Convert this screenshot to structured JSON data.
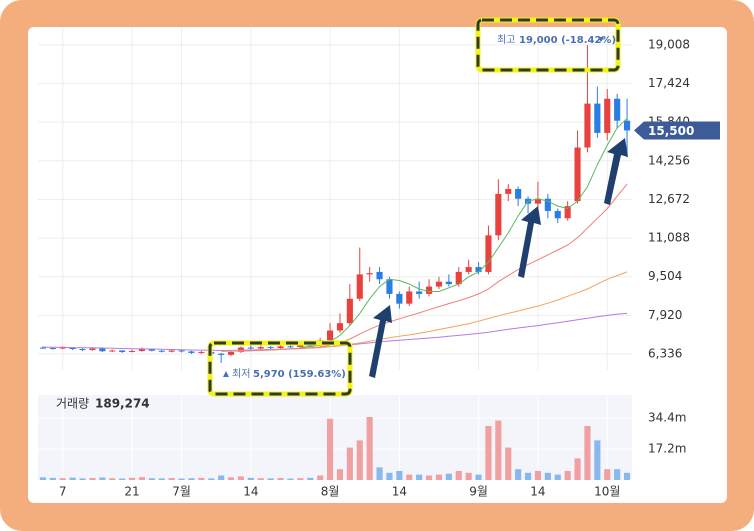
{
  "chart_data": [
    {
      "type": "candlestick",
      "xlim": [
        -0.5,
        59.5
      ],
      "ylim": [
        5680,
        19700
      ],
      "yticks": [
        {
          "value": 6336,
          "label": "6,336"
        },
        {
          "value": 7920,
          "label": "7,920"
        },
        {
          "value": 9504,
          "label": "9,504"
        },
        {
          "value": 11088,
          "label": "11,088"
        },
        {
          "value": 12672,
          "label": "12,672"
        },
        {
          "value": 14256,
          "label": "14,256"
        },
        {
          "value": 15840,
          "label": "15,840"
        },
        {
          "value": 17424,
          "label": "17,424"
        },
        {
          "value": 19008,
          "label": "19,008"
        }
      ],
      "grid": true,
      "up_color": "#e8423f",
      "down_color": "#2a7de1",
      "open": [
        6600,
        6580,
        6560,
        6600,
        6540,
        6500,
        6560,
        6450,
        6480,
        6420,
        6460,
        6540,
        6470,
        6430,
        6480,
        6440,
        6380,
        6420,
        6350,
        6300,
        6420,
        6600,
        6560,
        6620,
        6580,
        6650,
        6620,
        6700,
        6680,
        6900,
        7300,
        7600,
        8600,
        9600,
        9700,
        9400,
        8800,
        8400,
        8900,
        8800,
        9100,
        9300,
        9200,
        9700,
        9900,
        9700,
        11200,
        12900,
        13100,
        12700,
        12500,
        12700,
        12200,
        11900,
        12600,
        14800,
        16600,
        15400,
        16800,
        15900
      ],
      "high": [
        6650,
        6620,
        6640,
        6620,
        6580,
        6600,
        6590,
        6520,
        6500,
        6520,
        6600,
        6560,
        6500,
        6520,
        6510,
        6470,
        6460,
        6440,
        6380,
        6460,
        6650,
        6700,
        6680,
        6660,
        6700,
        6720,
        6780,
        6760,
        7000,
        7600,
        8000,
        9200,
        10700,
        9900,
        9900,
        9500,
        8900,
        9100,
        9300,
        9400,
        9500,
        9600,
        9900,
        10200,
        10100,
        11600,
        13500,
        13300,
        13200,
        12800,
        13400,
        12900,
        12300,
        12600,
        15500,
        19000,
        17300,
        17200,
        17000,
        16800
      ],
      "low": [
        6550,
        6520,
        6530,
        6500,
        6460,
        6470,
        6420,
        6420,
        6380,
        6400,
        6430,
        6440,
        6400,
        6400,
        6400,
        6340,
        6330,
        6300,
        5970,
        6250,
        6380,
        6520,
        6520,
        6540,
        6550,
        6580,
        6600,
        6640,
        6650,
        6880,
        7200,
        7500,
        8500,
        9300,
        9200,
        8600,
        8200,
        8300,
        8600,
        8700,
        9000,
        9100,
        9100,
        9600,
        9600,
        9600,
        11000,
        12600,
        12400,
        12100,
        12300,
        11900,
        11700,
        11800,
        12500,
        14600,
        15200,
        15100,
        15600,
        14400
      ],
      "close": [
        6580,
        6560,
        6600,
        6540,
        6500,
        6560,
        6450,
        6480,
        6420,
        6460,
        6540,
        6470,
        6430,
        6480,
        6440,
        6380,
        6420,
        6350,
        6300,
        6420,
        6600,
        6560,
        6620,
        6580,
        6650,
        6620,
        6700,
        6680,
        6900,
        7300,
        7600,
        8600,
        9600,
        9650,
        9400,
        8800,
        8400,
        8900,
        8800,
        9100,
        9300,
        9200,
        9700,
        9900,
        9700,
        11200,
        12900,
        13100,
        12700,
        12500,
        12700,
        12200,
        11900,
        12400,
        14800,
        16600,
        15400,
        16800,
        15900,
        15500
      ],
      "series": [
        {
          "color": "#b57be6",
          "values": [
            6620,
            6615,
            6610,
            6600,
            6595,
            6590,
            6580,
            6570,
            6560,
            6550,
            6545,
            6540,
            6530,
            6520,
            6510,
            6500,
            6495,
            6490,
            6480,
            6485,
            6490,
            6500,
            6510,
            6520,
            6530,
            6550,
            6570,
            6590,
            6610,
            6640,
            6670,
            6710,
            6750,
            6790,
            6830,
            6870,
            6900,
            6930,
            6960,
            6990,
            7020,
            7060,
            7100,
            7140,
            7180,
            7230,
            7290,
            7350,
            7400,
            7450,
            7500,
            7560,
            7620,
            7680,
            7740,
            7800,
            7860,
            7920,
            7970,
            8000
          ]
        },
        {
          "color": "#f5a25d",
          "values": [
            null,
            null,
            null,
            null,
            null,
            null,
            null,
            null,
            null,
            null,
            null,
            null,
            null,
            null,
            null,
            null,
            null,
            null,
            6440,
            6450,
            6460,
            6470,
            6480,
            6500,
            6520,
            6540,
            6560,
            6580,
            6600,
            6640,
            6680,
            6730,
            6790,
            6860,
            6930,
            7000,
            7060,
            7120,
            7190,
            7260,
            7340,
            7420,
            7500,
            7580,
            7680,
            7790,
            7900,
            8000,
            8100,
            8200,
            8300,
            8420,
            8550,
            8700,
            8850,
            9000,
            9200,
            9400,
            9550,
            9700
          ]
        },
        {
          "color": "#f07d7d",
          "values": [
            null,
            null,
            null,
            null,
            null,
            null,
            null,
            null,
            null,
            null,
            null,
            null,
            null,
            null,
            null,
            null,
            null,
            null,
            null,
            null,
            6450,
            6470,
            6490,
            6500,
            6520,
            6540,
            6560,
            6580,
            6620,
            6700,
            6800,
            6950,
            7150,
            7350,
            7520,
            7650,
            7780,
            7900,
            8020,
            8150,
            8280,
            8400,
            8520,
            8650,
            8800,
            9000,
            9300,
            9550,
            9800,
            10000,
            10200,
            10400,
            10600,
            10800,
            11100,
            11500,
            11900,
            12300,
            12800,
            13300
          ]
        },
        {
          "color": "#5cb85c",
          "values": [
            null,
            null,
            null,
            null,
            null,
            null,
            null,
            null,
            null,
            null,
            null,
            null,
            null,
            null,
            null,
            null,
            null,
            null,
            null,
            null,
            null,
            null,
            null,
            null,
            null,
            null,
            6620,
            6640,
            6700,
            6850,
            7100,
            7500,
            8000,
            8600,
            9100,
            9400,
            9350,
            9200,
            9000,
            8900,
            8900,
            9050,
            9200,
            9500,
            9700,
            10100,
            10700,
            11300,
            12000,
            12600,
            12700,
            12600,
            12400,
            12300,
            12600,
            13200,
            14100,
            14900,
            15600,
            16000
          ]
        }
      ],
      "high_annotation": {
        "label": "최고",
        "text": "19,000 (-18.42%)"
      },
      "low_annotation": {
        "label": "최저",
        "text": "5,970 (159.63%)"
      },
      "current_price": {
        "value": 15500,
        "label": "15,500"
      }
    },
    {
      "type": "bar",
      "title": "거래량",
      "subtitle": "189,274",
      "xlim": [
        -0.5,
        59.5
      ],
      "ylim": [
        0,
        47.2
      ],
      "yticks": [
        {
          "value": 17.2,
          "label": "17.2m"
        },
        {
          "value": 34.4,
          "label": "34.4m"
        }
      ],
      "xticks": [
        {
          "value": 2,
          "label": "7"
        },
        {
          "value": 9,
          "label": "21"
        },
        {
          "value": 14,
          "label": "7월"
        },
        {
          "value": 21,
          "label": "14"
        },
        {
          "value": 29,
          "label": "8월"
        },
        {
          "value": 36,
          "label": "14"
        },
        {
          "value": 44,
          "label": "9월"
        },
        {
          "value": 50,
          "label": "14"
        },
        {
          "value": 57,
          "label": "10월"
        }
      ],
      "up_color": "#f0a0a0",
      "down_color": "#8ab8ec",
      "values": [
        1.5,
        1.2,
        1.0,
        1.3,
        0.9,
        1.1,
        1.4,
        1.0,
        0.8,
        1.2,
        1.6,
        1.0,
        0.9,
        1.1,
        0.8,
        1.0,
        1.2,
        0.9,
        2.5,
        1.5,
        2.0,
        1.2,
        1.0,
        0.9,
        1.1,
        0.8,
        1.0,
        1.2,
        2.5,
        34,
        6,
        18,
        22,
        35,
        7,
        4,
        5,
        3,
        3,
        2.5,
        3,
        3.5,
        5,
        4,
        3,
        30,
        33,
        18,
        6,
        4,
        5,
        4,
        3,
        5,
        12,
        30,
        22,
        6,
        6,
        4
      ]
    }
  ]
}
